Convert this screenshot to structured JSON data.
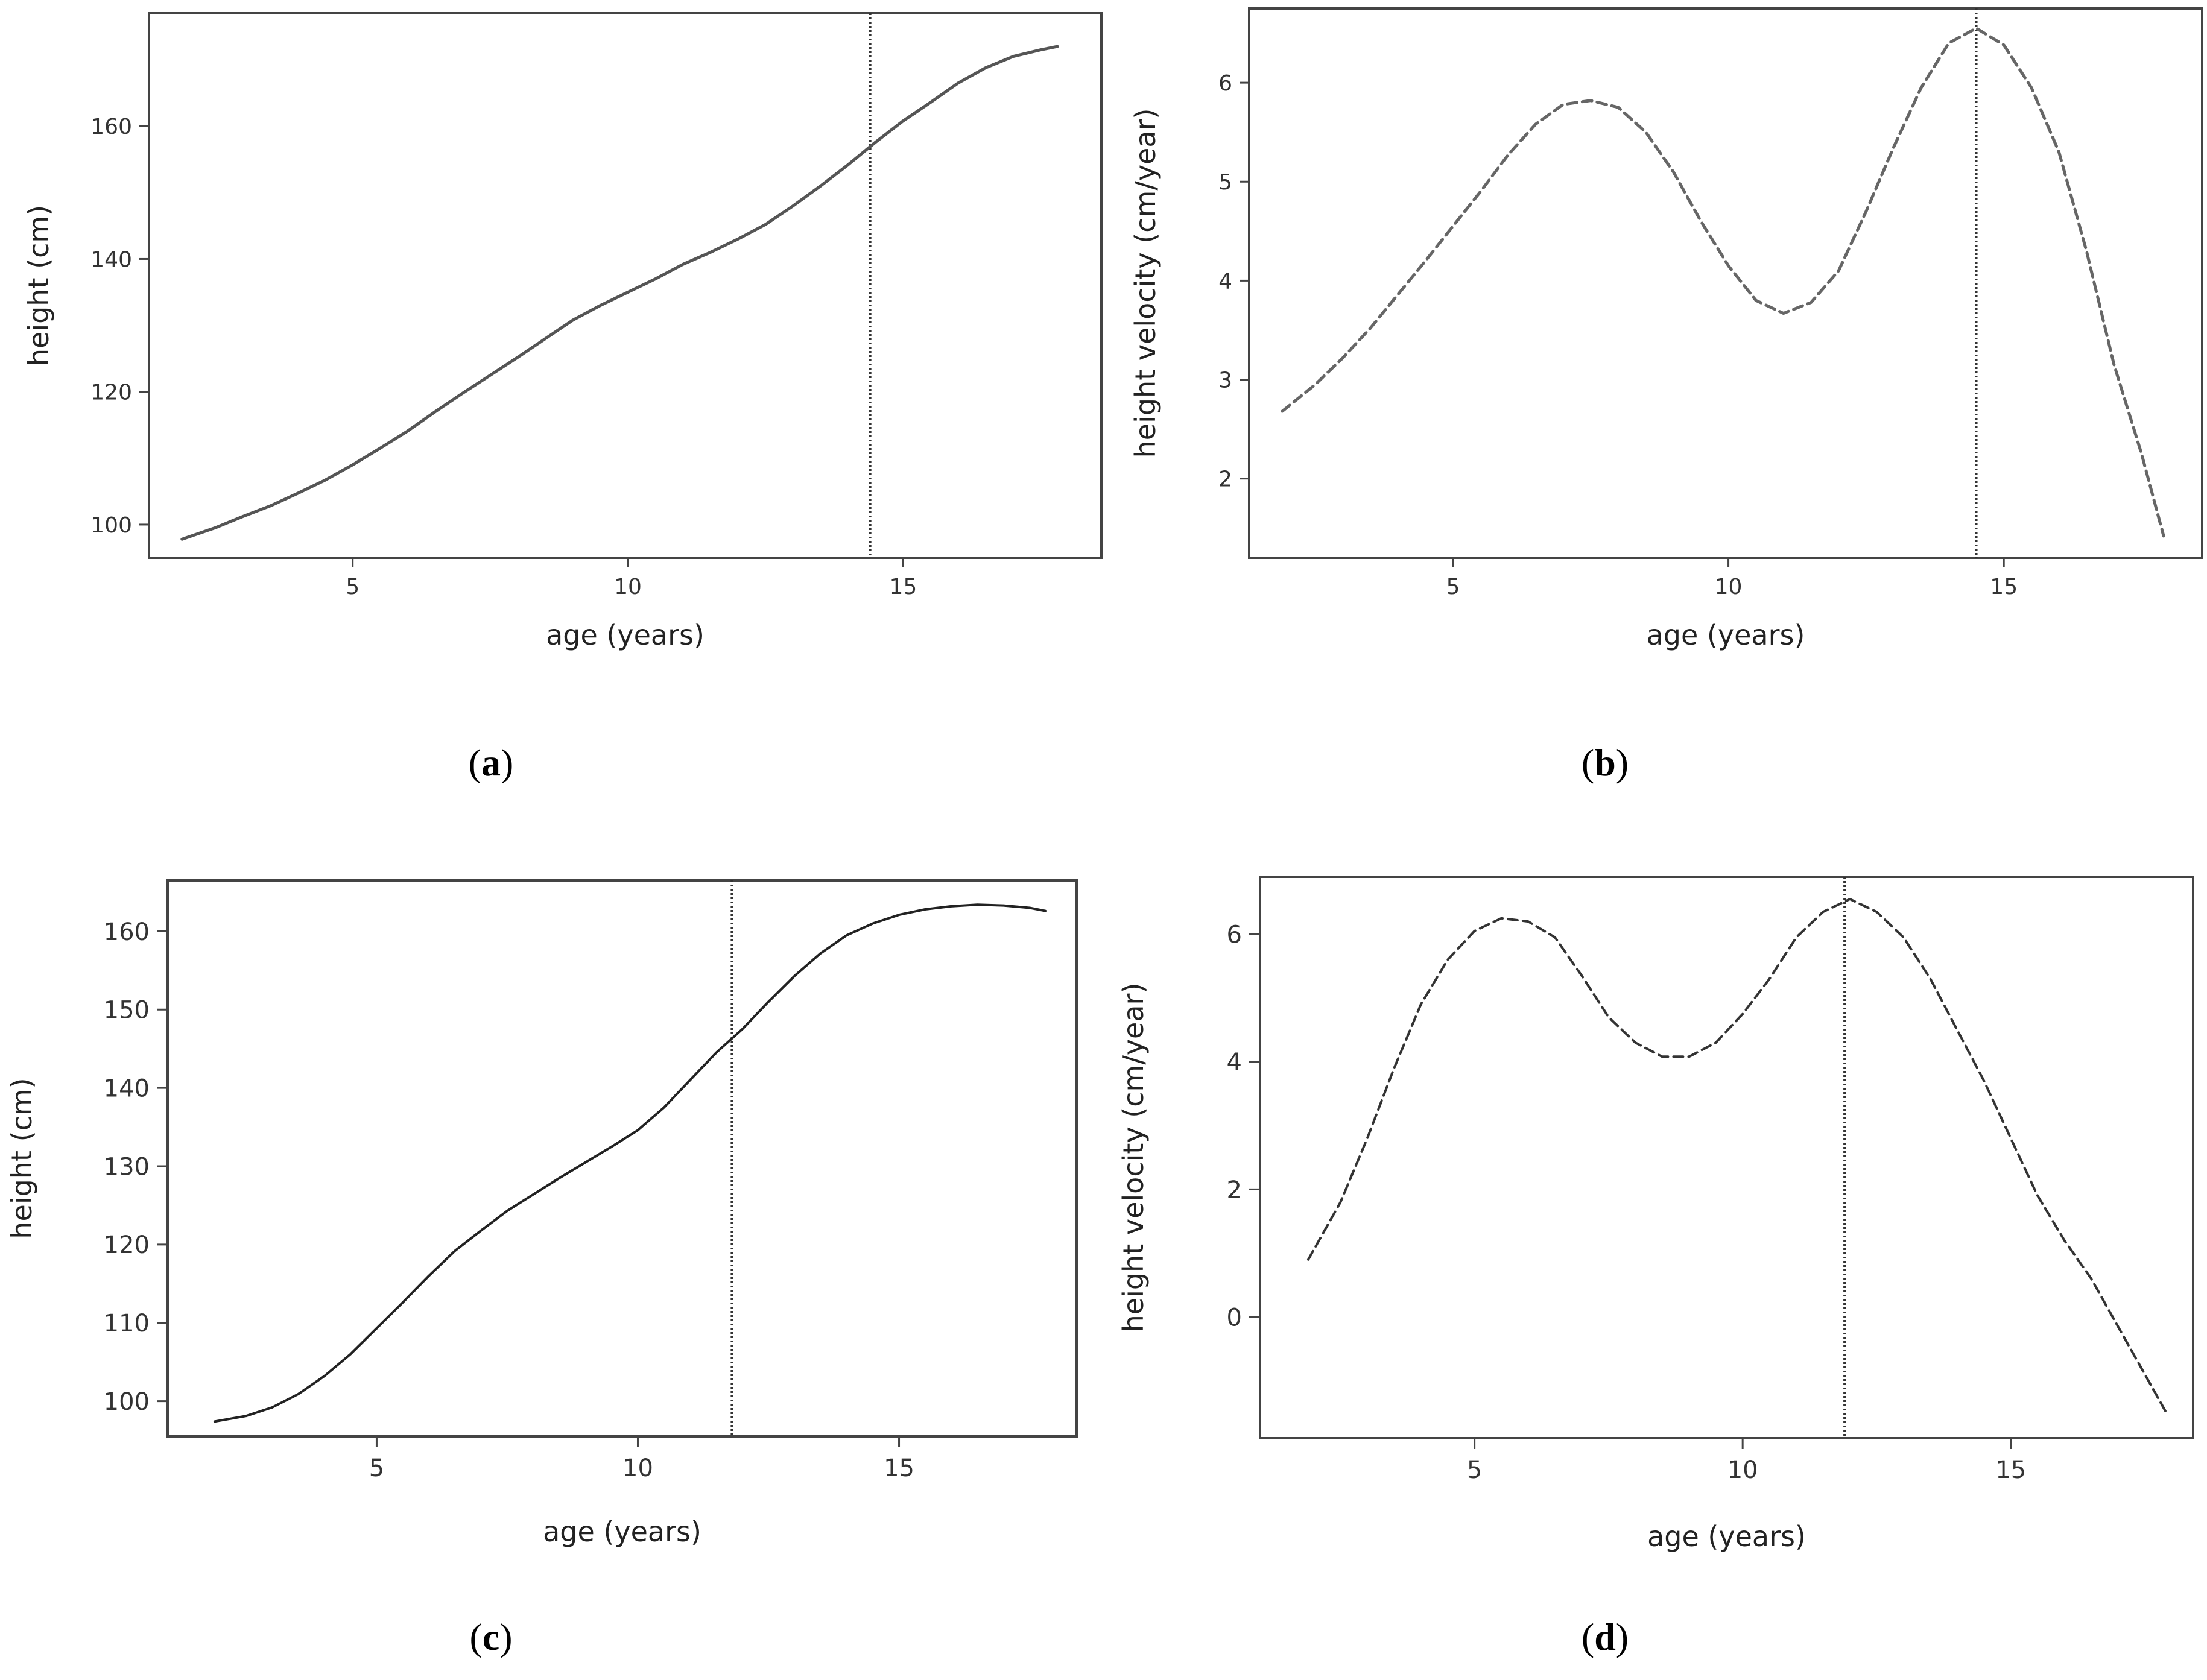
{
  "figure": {
    "panels": [
      {
        "label_open": "(",
        "label_letter": "a",
        "label_close": ")"
      },
      {
        "label_open": "(",
        "label_letter": "b",
        "label_close": ")"
      },
      {
        "label_open": "(",
        "label_letter": "c",
        "label_close": ")"
      },
      {
        "label_open": "(",
        "label_letter": "d",
        "label_close": ")"
      }
    ]
  },
  "chart_data": [
    {
      "type": "line",
      "xlabel": "age (years)",
      "ylabel": "height (cm)",
      "xlim": [
        1.3,
        18.6
      ],
      "ylim": [
        95,
        177
      ],
      "xticks": [
        5,
        10,
        15
      ],
      "yticks": [
        100,
        120,
        140,
        160
      ],
      "line_style": "solid",
      "line_color": "#555555",
      "vline_x": 14.4,
      "x": [
        1.9,
        2.5,
        3,
        3.5,
        4,
        4.5,
        5,
        5.5,
        6,
        6.5,
        7,
        7.5,
        8,
        8.5,
        9,
        9.5,
        10,
        10.5,
        11,
        11.5,
        12,
        12.5,
        13,
        13.5,
        14,
        14.5,
        15,
        15.5,
        16,
        16.5,
        17,
        17.5,
        17.8
      ],
      "y": [
        97.8,
        99.5,
        101.2,
        102.8,
        104.7,
        106.7,
        109.0,
        111.5,
        114.1,
        117.0,
        119.8,
        122.5,
        125.2,
        128.0,
        130.8,
        133.0,
        135.0,
        137.0,
        139.2,
        141.0,
        143.0,
        145.2,
        148.0,
        151.0,
        154.2,
        157.6,
        160.8,
        163.6,
        166.5,
        168.8,
        170.5,
        171.5,
        172.0
      ]
    },
    {
      "type": "line",
      "xlabel": "age (years)",
      "ylabel": "height velocity (cm/year)",
      "xlim": [
        1.3,
        18.6
      ],
      "ylim": [
        1.2,
        6.75
      ],
      "xticks": [
        5,
        10,
        15
      ],
      "yticks": [
        2,
        3,
        4,
        5,
        6
      ],
      "line_style": "dashed",
      "line_color": "#666666",
      "vline_x": 14.5,
      "x": [
        1.9,
        2.5,
        3,
        3.5,
        4,
        4.5,
        5,
        5.5,
        6,
        6.5,
        7,
        7.5,
        8,
        8.5,
        9,
        9.5,
        10,
        10.5,
        11,
        11.5,
        12,
        12.5,
        13,
        13.5,
        14,
        14.5,
        15,
        15.5,
        16,
        16.5,
        17,
        17.5,
        17.9
      ],
      "y": [
        2.68,
        2.95,
        3.22,
        3.52,
        3.86,
        4.2,
        4.55,
        4.9,
        5.27,
        5.58,
        5.78,
        5.82,
        5.75,
        5.5,
        5.1,
        4.6,
        4.15,
        3.8,
        3.67,
        3.78,
        4.1,
        4.7,
        5.35,
        5.95,
        6.4,
        6.55,
        6.38,
        5.95,
        5.3,
        4.3,
        3.15,
        2.25,
        1.42
      ]
    },
    {
      "type": "line",
      "xlabel": "age (years)",
      "ylabel": "height (cm)",
      "xlim": [
        1.0,
        18.4
      ],
      "ylim": [
        95.5,
        166.5
      ],
      "xticks": [
        5,
        10,
        15
      ],
      "yticks": [
        100,
        110,
        120,
        130,
        140,
        150,
        160
      ],
      "line_style": "solid",
      "line_color": "#222222",
      "vline_x": 11.8,
      "x": [
        1.9,
        2.5,
        3,
        3.5,
        4,
        4.5,
        5,
        5.5,
        6,
        6.5,
        7,
        7.5,
        8,
        8.5,
        9,
        9.5,
        10,
        10.5,
        11,
        11.5,
        12,
        12.5,
        13,
        13.5,
        14,
        14.5,
        15,
        15.5,
        16,
        16.5,
        17,
        17.5,
        17.8
      ],
      "y": [
        97.4,
        98.1,
        99.2,
        100.9,
        103.2,
        106.0,
        109.3,
        112.6,
        116.0,
        119.2,
        121.8,
        124.3,
        126.4,
        128.5,
        130.5,
        132.5,
        134.6,
        137.5,
        141.0,
        144.5,
        147.5,
        151.0,
        154.3,
        157.2,
        159.5,
        161.0,
        162.1,
        162.8,
        163.2,
        163.4,
        163.3,
        163.0,
        162.6
      ]
    },
    {
      "type": "line",
      "xlabel": "age (years)",
      "ylabel": "height velocity (cm/year)",
      "xlim": [
        1.0,
        18.4
      ],
      "ylim": [
        -1.9,
        6.9
      ],
      "xticks": [
        5,
        10,
        15
      ],
      "yticks": [
        0,
        2,
        4,
        6
      ],
      "line_style": "dashed",
      "line_color": "#333333",
      "vline_x": 11.9,
      "x": [
        1.9,
        2.5,
        3,
        3.5,
        4,
        4.5,
        5,
        5.5,
        6,
        6.5,
        7,
        7.5,
        8,
        8.5,
        9,
        9.5,
        10,
        10.5,
        11,
        11.5,
        12,
        12.5,
        13,
        13.5,
        14,
        14.5,
        15,
        15.5,
        16,
        16.5,
        17,
        17.5,
        17.9
      ],
      "y": [
        0.9,
        1.8,
        2.8,
        3.9,
        4.9,
        5.6,
        6.05,
        6.25,
        6.2,
        5.95,
        5.35,
        4.7,
        4.3,
        4.08,
        4.08,
        4.3,
        4.75,
        5.3,
        5.95,
        6.35,
        6.55,
        6.35,
        5.95,
        5.3,
        4.5,
        3.7,
        2.8,
        1.9,
        1.2,
        0.6,
        -0.15,
        -0.9,
        -1.5
      ]
    }
  ]
}
